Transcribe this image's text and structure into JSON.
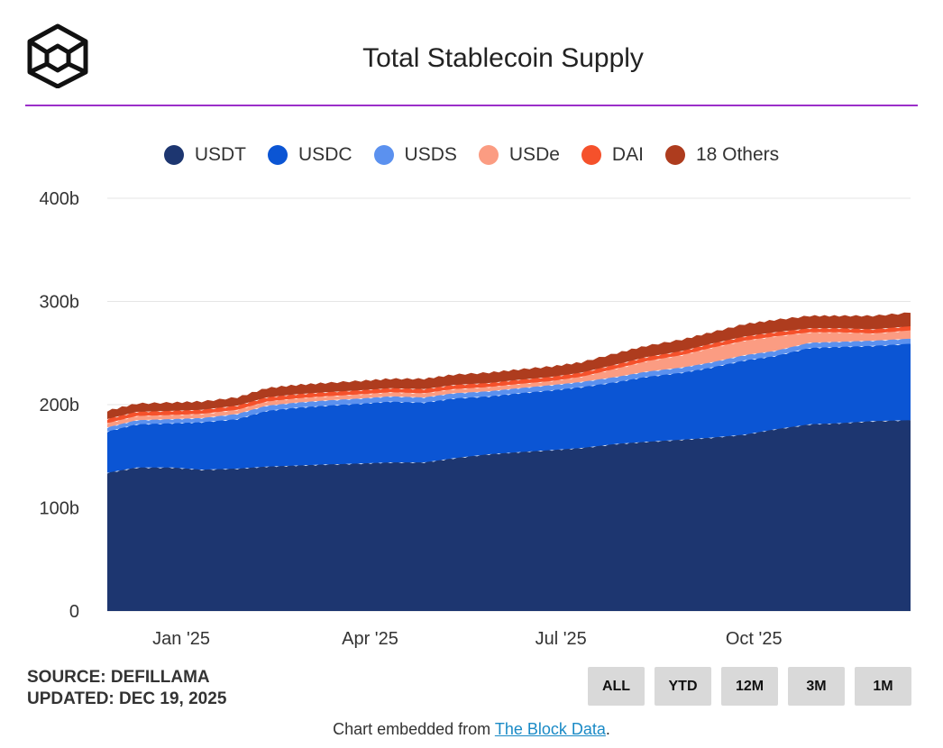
{
  "header": {
    "title": "Total Stablecoin Supply",
    "accent_color": "#9b2fc9"
  },
  "footer": {
    "source": "SOURCE: DEFILLAMA",
    "updated": "UPDATED: DEC 19, 2025",
    "embed_prefix": "Chart embedded from ",
    "embed_link": "The Block Data",
    "embed_suffix": "."
  },
  "range_buttons": [
    "ALL",
    "YTD",
    "12M",
    "3M",
    "1M"
  ],
  "chart_data": {
    "type": "area",
    "stacked": true,
    "title": "Total Stablecoin Supply",
    "xlabel": "",
    "ylabel": "",
    "ylim": [
      0,
      400
    ],
    "y_ticks": [
      0,
      100,
      200,
      300,
      400
    ],
    "y_tick_labels": [
      "0",
      "100b",
      "200b",
      "300b",
      "400b"
    ],
    "x_range": [
      "2024-12-01",
      "2025-12-19"
    ],
    "x_ticks": [
      {
        "date": "2025-01-01",
        "label": "Jan '25"
      },
      {
        "date": "2025-04-01",
        "label": "Apr '25"
      },
      {
        "date": "2025-07-01",
        "label": "Jul '25"
      },
      {
        "date": "2025-10-01",
        "label": "Oct '25"
      }
    ],
    "x": [
      "2024-12-01",
      "2024-12-15",
      "2025-01-01",
      "2025-01-15",
      "2025-02-01",
      "2025-02-15",
      "2025-03-01",
      "2025-03-15",
      "2025-04-01",
      "2025-04-15",
      "2025-05-01",
      "2025-05-15",
      "2025-06-01",
      "2025-06-15",
      "2025-07-01",
      "2025-07-15",
      "2025-08-01",
      "2025-08-15",
      "2025-09-01",
      "2025-09-15",
      "2025-10-01",
      "2025-10-15",
      "2025-11-01",
      "2025-11-15",
      "2025-12-01",
      "2025-12-19"
    ],
    "series": [
      {
        "name": "USDT",
        "color": "#1d3670",
        "values": [
          134,
          139,
          139,
          137,
          138,
          140,
          141,
          142,
          143,
          144,
          144,
          148,
          152,
          154,
          156,
          158,
          162,
          164,
          166,
          168,
          171,
          176,
          181,
          182,
          184,
          185
        ]
      },
      {
        "name": "USDC",
        "color": "#0b55d4",
        "values": [
          40,
          42,
          43,
          46,
          48,
          54,
          56,
          57,
          58,
          59,
          58,
          58,
          56,
          57,
          58,
          59,
          60,
          63,
          65,
          68,
          72,
          71,
          74,
          74,
          73,
          74
        ]
      },
      {
        "name": "USDS",
        "color": "#5b91ef",
        "values": [
          4,
          4,
          4,
          4,
          5,
          5,
          5,
          5,
          5,
          5,
          5,
          5,
          5,
          5,
          5,
          5,
          5,
          5,
          5,
          5,
          5,
          5,
          5,
          5,
          5,
          5
        ]
      },
      {
        "name": "USDe",
        "color": "#fb9c82",
        "values": [
          4,
          4,
          4,
          4,
          4,
          4,
          4,
          4,
          4,
          4,
          4,
          4,
          4,
          4,
          4,
          5,
          8,
          10,
          12,
          14,
          14,
          14,
          10,
          9,
          7,
          8
        ]
      },
      {
        "name": "DAI",
        "color": "#f5512b",
        "values": [
          4,
          4,
          4,
          4,
          4,
          4,
          4,
          4,
          4,
          4,
          4,
          4,
          4,
          4,
          4,
          4,
          4,
          4,
          4,
          4,
          4,
          4,
          4,
          4,
          4,
          4
        ]
      },
      {
        "name": "18 Others",
        "color": "#ae3c1e",
        "values": [
          8,
          8,
          8,
          8,
          8,
          9,
          9,
          9,
          9,
          9,
          10,
          10,
          10,
          10,
          10,
          10,
          11,
          11,
          11,
          11,
          12,
          12,
          12,
          12,
          13,
          13
        ]
      }
    ]
  }
}
